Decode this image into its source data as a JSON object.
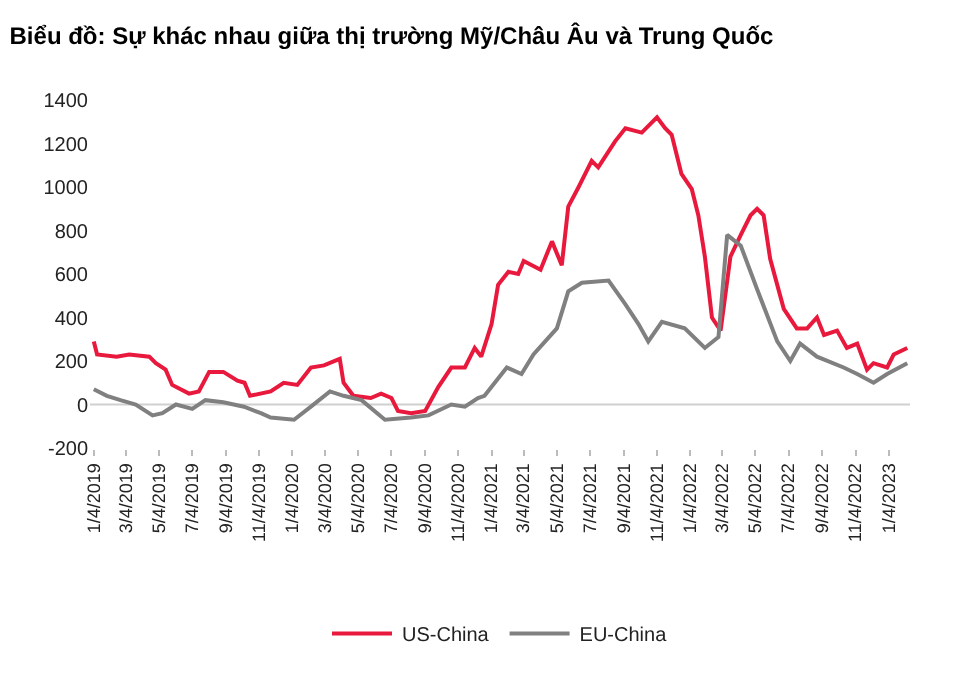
{
  "chart_data": {
    "type": "line",
    "title": "Biểu đồ: Sự khác nhau giữa thị trường Mỹ/Châu Âu và Trung Quốc",
    "series": [
      {
        "name": "US-China",
        "color": "#e8193c",
        "x": [
          "2019-01-04",
          "2019-01-10",
          "2019-02-15",
          "2019-03-10",
          "2019-04-16",
          "2019-04-28",
          "2019-05-16",
          "2019-05-28",
          "2019-06-28",
          "2019-07-16",
          "2019-08-04",
          "2019-08-30",
          "2019-09-25",
          "2019-10-08",
          "2019-10-18",
          "2019-11-25",
          "2019-12-19",
          "2020-01-13",
          "2020-02-07",
          "2020-03-02",
          "2020-03-31",
          "2020-04-07",
          "2020-04-25",
          "2020-05-27",
          "2020-06-15",
          "2020-07-04",
          "2020-07-16",
          "2020-08-09",
          "2020-09-04",
          "2020-09-28",
          "2020-10-22",
          "2020-11-16",
          "2020-12-04",
          "2020-12-16",
          "2021-01-04",
          "2021-01-16",
          "2021-02-04",
          "2021-02-22",
          "2021-03-04",
          "2021-04-04",
          "2021-04-25",
          "2021-05-13",
          "2021-05-25",
          "2021-06-13",
          "2021-07-07",
          "2021-07-19",
          "2021-08-19",
          "2021-09-07",
          "2021-10-07",
          "2021-11-04",
          "2021-11-19",
          "2021-12-01",
          "2021-12-19",
          "2022-01-07",
          "2022-01-19",
          "2022-01-31",
          "2022-02-13",
          "2022-03-01",
          "2022-03-19",
          "2022-04-07",
          "2022-04-25",
          "2022-05-07",
          "2022-05-19",
          "2022-05-31",
          "2022-06-25",
          "2022-07-19",
          "2022-08-07",
          "2022-08-25",
          "2022-09-07",
          "2022-10-01",
          "2022-10-19",
          "2022-11-07",
          "2022-11-25",
          "2022-12-07",
          "2023-01-01",
          "2023-01-13",
          "2023-02-07"
        ],
        "values": [
          290,
          230,
          220,
          230,
          220,
          190,
          160,
          90,
          50,
          60,
          150,
          150,
          110,
          100,
          40,
          60,
          100,
          90,
          170,
          180,
          210,
          100,
          40,
          30,
          50,
          30,
          -30,
          -40,
          -30,
          80,
          170,
          170,
          260,
          220,
          370,
          550,
          610,
          600,
          660,
          620,
          750,
          640,
          910,
          1000,
          1120,
          1090,
          1210,
          1270,
          1250,
          1320,
          1270,
          1240,
          1060,
          990,
          870,
          680,
          400,
          340,
          680,
          780,
          870,
          900,
          870,
          670,
          440,
          350,
          350,
          400,
          320,
          340,
          260,
          280,
          160,
          190,
          170,
          230,
          260
        ]
      },
      {
        "name": "EU-China",
        "color": "#808080",
        "x": [
          "2019-01-04",
          "2019-01-28",
          "2019-02-22",
          "2019-03-22",
          "2019-04-22",
          "2019-05-10",
          "2019-06-04",
          "2019-07-04",
          "2019-07-28",
          "2019-08-30",
          "2019-10-07",
          "2019-11-07",
          "2019-11-25",
          "2020-01-07",
          "2020-02-07",
          "2020-03-13",
          "2020-04-07",
          "2020-05-10",
          "2020-06-22",
          "2020-08-09",
          "2020-09-10",
          "2020-10-22",
          "2020-11-16",
          "2020-12-10",
          "2020-12-22",
          "2021-02-01",
          "2021-02-28",
          "2021-03-22",
          "2021-05-04",
          "2021-05-25",
          "2021-06-19",
          "2021-08-07",
          "2021-09-07",
          "2021-10-01",
          "2021-10-19",
          "2021-11-13",
          "2021-12-25",
          "2022-01-31",
          "2022-02-25",
          "2022-03-13",
          "2022-04-07",
          "2022-05-07",
          "2022-06-13",
          "2022-07-07",
          "2022-07-25",
          "2022-08-25",
          "2022-10-13",
          "2022-11-07",
          "2022-12-07",
          "2023-01-01",
          "2023-02-07"
        ],
        "values": [
          70,
          40,
          20,
          0,
          -50,
          -40,
          0,
          -20,
          20,
          10,
          -10,
          -40,
          -60,
          -70,
          -10,
          60,
          40,
          20,
          -70,
          -60,
          -50,
          0,
          -10,
          30,
          40,
          170,
          140,
          230,
          350,
          520,
          560,
          570,
          460,
          370,
          290,
          380,
          350,
          260,
          310,
          780,
          730,
          530,
          290,
          200,
          280,
          220,
          170,
          140,
          100,
          140,
          190
        ]
      }
    ],
    "xlim": [
      "2018-12-28",
      "2023-02-12"
    ],
    "xticks": [
      {
        "value": "2019-01-04",
        "label": "1/4/2019"
      },
      {
        "value": "2019-03-04",
        "label": "3/4/2019"
      },
      {
        "value": "2019-05-04",
        "label": "5/4/2019"
      },
      {
        "value": "2019-07-04",
        "label": "7/4/2019"
      },
      {
        "value": "2019-09-04",
        "label": "9/4/2019"
      },
      {
        "value": "2019-11-04",
        "label": "11/4/2019"
      },
      {
        "value": "2020-01-04",
        "label": "1/4/2020"
      },
      {
        "value": "2020-03-04",
        "label": "3/4/2020"
      },
      {
        "value": "2020-05-04",
        "label": "5/4/2020"
      },
      {
        "value": "2020-07-04",
        "label": "7/4/2020"
      },
      {
        "value": "2020-09-04",
        "label": "9/4/2020"
      },
      {
        "value": "2020-11-04",
        "label": "11/4/2020"
      },
      {
        "value": "2021-01-04",
        "label": "1/4/2021"
      },
      {
        "value": "2021-03-04",
        "label": "3/4/2021"
      },
      {
        "value": "2021-05-04",
        "label": "5/4/2021"
      },
      {
        "value": "2021-07-04",
        "label": "7/4/2021"
      },
      {
        "value": "2021-09-04",
        "label": "9/4/2021"
      },
      {
        "value": "2021-11-04",
        "label": "11/4/2021"
      },
      {
        "value": "2022-01-04",
        "label": "1/4/2022"
      },
      {
        "value": "2022-03-04",
        "label": "3/4/2022"
      },
      {
        "value": "2022-05-04",
        "label": "5/4/2022"
      },
      {
        "value": "2022-07-04",
        "label": "7/4/2022"
      },
      {
        "value": "2022-09-04",
        "label": "9/4/2022"
      },
      {
        "value": "2022-11-04",
        "label": "11/4/2022"
      },
      {
        "value": "2023-01-04",
        "label": "1/4/2023"
      }
    ],
    "ylim": [
      -200,
      1400
    ],
    "yticks": [
      -200,
      0,
      200,
      400,
      600,
      800,
      1000,
      1200,
      1400
    ],
    "grid": false,
    "ref_lines": [
      {
        "axis": "y",
        "value": 0,
        "color": "#d0d0d0"
      }
    ],
    "legend": "bottom"
  }
}
